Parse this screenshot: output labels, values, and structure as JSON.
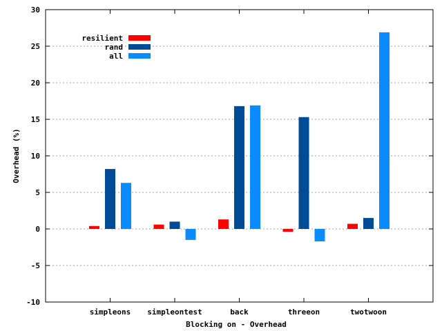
{
  "chart_data": {
    "type": "bar",
    "title": "",
    "xlabel": "Blocking on - Overhead",
    "ylabel": "Overhead (%)",
    "ylim": [
      -10,
      30
    ],
    "yticks": [
      -10,
      -5,
      0,
      5,
      10,
      15,
      20,
      25,
      30
    ],
    "grid": "horizontal dotted",
    "legend_position": "top-left",
    "categories": [
      "simpleons",
      "simpleontest",
      "back",
      "threeon",
      "twotwoon"
    ],
    "series": [
      {
        "name": "resilient",
        "color": "#ff0000",
        "values": [
          0.4,
          0.6,
          1.3,
          -0.4,
          0.7
        ]
      },
      {
        "name": "rand",
        "color": "#004b96",
        "values": [
          8.2,
          1.0,
          16.8,
          15.3,
          1.5
        ]
      },
      {
        "name": "all",
        "color": "#0a8cff",
        "values": [
          6.3,
          -1.5,
          16.9,
          -1.7,
          26.9
        ]
      }
    ]
  }
}
